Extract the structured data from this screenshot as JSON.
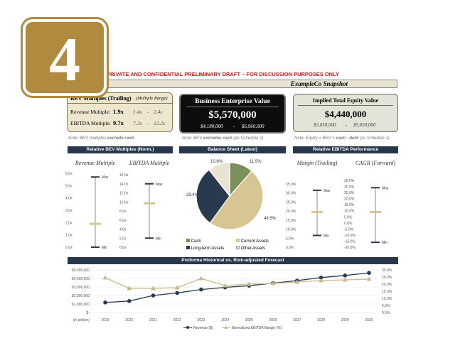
{
  "badge": {
    "number": "4"
  },
  "header": {
    "confidential": "PRIVATE AND CONFIDENTIAL PRELIMINARY DRAFT – FOR DISCUSSION PURPOSES ONLY",
    "snapshot_title": "ExampleCo Snapshot"
  },
  "bev_box": {
    "title": "BEV Multiples (Trailing)",
    "subtitle": "(Multiple Range)",
    "rows": [
      {
        "label": "Revenue Multiple:",
        "value": "1.9x",
        "low": "1.4x",
        "sep": "-",
        "high": "2.4x"
      },
      {
        "label": "EBITDA Multiple:",
        "value": "9.7x",
        "low": "7.3x",
        "sep": "-",
        "high": "12.2x"
      }
    ],
    "note_prefix": "Note: BEV multiples",
    "note_bold": "exclude cash"
  },
  "bev_center": {
    "title": "Business Enterprise Value",
    "value": "$5,570,000",
    "low": "$4,180,000",
    "sep": "-",
    "high": "$6,960,000",
    "note_prefix": "Note: BEV",
    "note_bold": "excludes cash",
    "note_suffix": "(as Schedule 1)"
  },
  "equity_box": {
    "title": "Implied Total Equity Value",
    "value": "$4,440,000",
    "low": "$3,050,000",
    "sep": "-",
    "high": "$5,830,000",
    "note_prefix": "Note: Equity = BEV",
    "note_bold": "+ cash - debt",
    "note_suffix": "(as Schedule 1)"
  },
  "sections": {
    "bev_norm": "Relative BEV Multiples (Norm.)",
    "balance": "Balance Sheet (Latest)",
    "ebitda_perf": "Relative EBITDA Performance",
    "forecast": "Proforma Historical vs. Risk-adjusted Forecast"
  },
  "range_charts": [
    {
      "title": "Revenue Multiple",
      "ticks": [
        "0.0x",
        "1.0x",
        "2.0x",
        "3.0x",
        "4.0x",
        "5.0x",
        "6.0x"
      ],
      "min": 0.0,
      "max": 5.7,
      "marker": 1.9,
      "ymin": 0,
      "ymax": 6,
      "max_label": "Max",
      "min_label": "Min"
    },
    {
      "title": "EBITDA Multiple",
      "ticks": [
        "0.0x",
        "2.0x",
        "4.0x",
        "6.0x",
        "8.0x",
        "10.0x",
        "12.0x",
        "14.0x",
        "16.0x"
      ],
      "min": 2.0,
      "max": 14.0,
      "marker": 9.7,
      "ymin": 0,
      "ymax": 16,
      "max_label": "Max",
      "min_label": "Min"
    },
    {
      "title": "Margin (Trailing)",
      "ticks": [
        "0.0%",
        "5.0%",
        "10.0%",
        "15.0%",
        "20.0%",
        "25.0%",
        "30.0%",
        "35.0%"
      ],
      "min": 6.5,
      "max": 31.5,
      "marker": 19.5,
      "ymin": 0,
      "ymax": 35,
      "max_label": "Max",
      "min_label": "Min"
    },
    {
      "title": "CAGR (Forward)",
      "ticks": [
        "-20.0%",
        "-15.0%",
        "-10.0%",
        "-5.0%",
        "0.0%",
        "5.0%",
        "10.0%",
        "15.0%",
        "20.0%",
        "25.0%",
        "30.0%",
        "35.0%"
      ],
      "min": -16.0,
      "max": 29.0,
      "marker": 9.0,
      "ymin": -20,
      "ymax": 35,
      "max_label": "Max",
      "min_label": "Min"
    }
  ],
  "chart_data": [
    {
      "type": "pie",
      "title": "Balance Sheet (Latest)",
      "slices": [
        {
          "name": "Cash",
          "value": 11.5,
          "label": "11.5%",
          "color": "#7c8f5a"
        },
        {
          "name": "Current Assets",
          "value": 48.5,
          "label": "48.5%",
          "color": "#d8c594"
        },
        {
          "name": "Long-term Assets",
          "value": 29.4,
          "label": "29.4%",
          "color": "#2a3a4e"
        },
        {
          "name": "Other Assets",
          "value": 10.6,
          "label": "10.6%",
          "color": "#e8e3d3"
        }
      ]
    },
    {
      "type": "line",
      "title": "Proforma Historical vs. Risk-adjusted Forecast",
      "x": [
        "2019",
        "2020",
        "2021",
        "2022",
        "2023",
        "2024",
        "2025",
        "2026",
        "2027",
        "2028",
        "2029",
        "2030"
      ],
      "xlabel": "(in dollars)",
      "y_ticks_left": [
        "$-",
        "$1,000,000",
        "$2,000,000",
        "$3,000,000",
        "$4,000,000",
        "$5,000,000"
      ],
      "y_ticks_right": [
        "0.0%",
        "5.0%",
        "10.0%",
        "15.0%",
        "20.0%",
        "25.0%",
        "30.0%"
      ],
      "ylim_left": [
        0,
        5000000
      ],
      "ylim_right": [
        0,
        30
      ],
      "series": [
        {
          "name": "Revenue ($)",
          "axis": "left",
          "color": "#2a3a4e",
          "marker": "circle",
          "values": [
            1180000,
            1350000,
            2000000,
            2300000,
            2700000,
            2950000,
            3150000,
            3450000,
            3750000,
            4100000,
            4350000,
            4650000
          ]
        },
        {
          "name": "Normalized EBITDA Margin (%)",
          "axis": "right",
          "color": "#c9b98a",
          "marker": "triangle",
          "values": [
            24.5,
            17.0,
            17.0,
            17.5,
            24.0,
            19.0,
            20.0,
            20.5,
            21.5,
            22.5,
            23.0,
            23.5
          ]
        }
      ]
    }
  ]
}
